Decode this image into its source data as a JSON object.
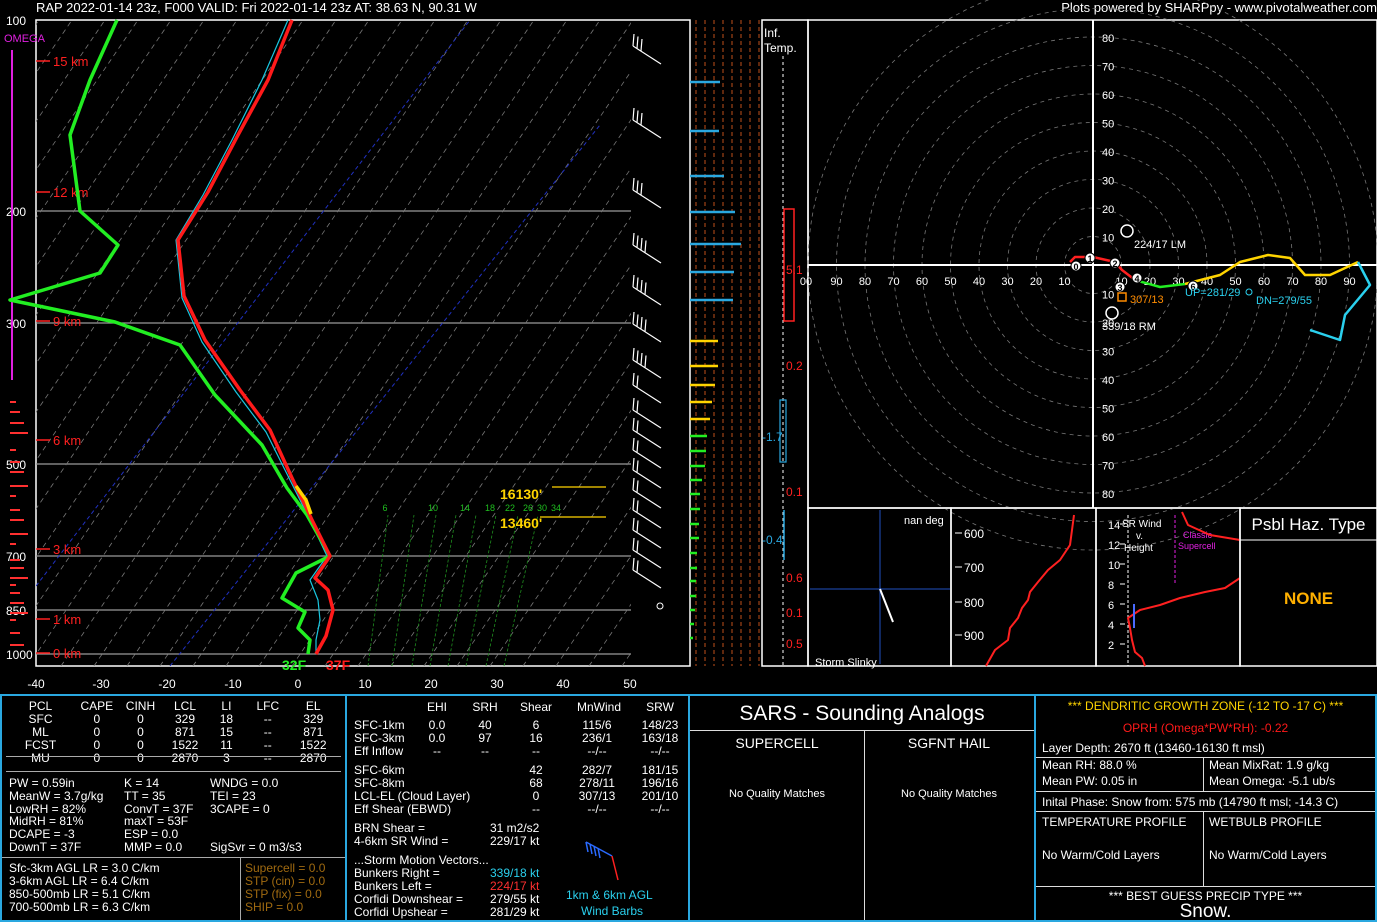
{
  "header": {
    "left": "RAP 2022-01-14 23z, F000  VALID: Fri 2022-01-14 23z  AT: 38.63 N, 90.31 W",
    "right": "Plots powered by SHARPpy - www.pivotalweather.com"
  },
  "colors": {
    "temp": "#ff1a1a",
    "dew": "#22ee22",
    "wetbulb": "#19c7e0",
    "accent": "#2aa8e0",
    "yellow": "#ffd400",
    "magenta": "#e020e0",
    "orange": "#ff8c00"
  },
  "skewt": {
    "omega_label": "OMEGA",
    "pressure_labels": [
      "100",
      "200",
      "300",
      "500",
      "700",
      "850",
      "1000"
    ],
    "height_labels": [
      "15 km",
      "12 km",
      "9 km",
      "6 km",
      "3 km",
      "1 km",
      "0 km"
    ],
    "temp_ticks": [
      "-40",
      "-30",
      "-20",
      "-10",
      "0",
      "10",
      "20",
      "30",
      "40",
      "50"
    ],
    "mixing_ratio_labels": [
      "6",
      "10",
      "14",
      "18",
      "22",
      "26",
      "30",
      "34"
    ],
    "sfc_temp_label": "32F",
    "sfc_dew_label": "37F",
    "dgz_top_label": "16130'",
    "dgz_bottom_label": "13460'"
  },
  "inferred_temp": {
    "title_line1": "Inf.",
    "title_line2": "Temp.",
    "values": [
      "5.1",
      "0.2",
      "-1.7",
      "0.1",
      "-0.4",
      "0.6",
      "0.1",
      "0.5"
    ]
  },
  "hodograph": {
    "speed_rings": [
      "10",
      "20",
      "30",
      "40",
      "50",
      "60",
      "70",
      "80"
    ],
    "x_labels": [
      "00",
      "90",
      "80",
      "70",
      "60",
      "50",
      "40",
      "30",
      "20",
      "10",
      "10",
      "20",
      "30",
      "40",
      "50",
      "60",
      "70",
      "80",
      "90"
    ],
    "lm_label": "224/17 LM",
    "rm_label": "339/18 RM",
    "corfidi_up": "UP=281/29",
    "corfidi_dn": "DN=279/55",
    "mean_wind": "307/13",
    "point_labels": [
      "0",
      "1",
      "2",
      "3",
      "4",
      "6"
    ]
  },
  "storm_slinky": {
    "deg_label": "nan deg",
    "title": "Storm Slinky"
  },
  "theta_e": {
    "labels": [
      "600",
      "700",
      "800",
      "900"
    ]
  },
  "sr_wind": {
    "title_line1": "SR Wind",
    "title_line2": "v.",
    "title_line3": "Height",
    "y_labels": [
      "14",
      "12",
      "10",
      "8",
      "6",
      "4",
      "2"
    ],
    "classic_label": "Classic Supercell"
  },
  "hazard": {
    "title": "Psbl Haz. Type",
    "value": "NONE"
  },
  "parcels": {
    "headers": [
      "PCL",
      "CAPE",
      "CINH",
      "LCL",
      "LI",
      "LFC",
      "EL"
    ],
    "rows": [
      [
        "SFC",
        "0",
        "0",
        "329",
        "18",
        "--",
        "329"
      ],
      [
        "ML",
        "0",
        "0",
        "871",
        "15",
        "--",
        "871"
      ],
      [
        "FCST",
        "0",
        "0",
        "1522",
        "11",
        "--",
        "1522"
      ],
      [
        "MU",
        "0",
        "0",
        "2870",
        "3",
        "--",
        "2870"
      ]
    ]
  },
  "indices": {
    "col1": [
      "PW = 0.59in",
      "MeanW = 3.7g/kg",
      "LowRH = 82%",
      "MidRH = 81%",
      "DCAPE = -3",
      "DownT = 37F"
    ],
    "col2": [
      "K = 14",
      "TT = 35",
      "ConvT = 37F",
      "maxT = 53F",
      "ESP = 0.0",
      "MMP = 0.0"
    ],
    "col3": [
      "WNDG = 0.0",
      "TEI = 23",
      "3CAPE = 0",
      "",
      "",
      "SigSvr = 0 m3/s3"
    ]
  },
  "lapse": {
    "rates": [
      "Sfc-3km AGL LR = 3.0 C/km",
      "3-6km AGL LR = 6.4 C/km",
      "850-500mb LR = 5.1 C/km",
      "700-500mb LR = 6.3 C/km"
    ],
    "params": [
      "Supercell = 0.0",
      "STP (cin) = 0.0",
      "STP (fix) = 0.0",
      "SHIP = 0.0"
    ]
  },
  "kinematics": {
    "headers": [
      "EHI",
      "SRH",
      "Shear",
      "MnWind",
      "SRW"
    ],
    "rows1": [
      [
        "SFC-1km",
        "0.0",
        "40",
        "6",
        "115/6",
        "148/23"
      ],
      [
        "SFC-3km",
        "0.0",
        "97",
        "16",
        "236/1",
        "163/18"
      ],
      [
        "Eff Inflow",
        "--",
        "--",
        "--",
        "--/--",
        "--/--"
      ]
    ],
    "rows2": [
      [
        "SFC-6km",
        "",
        "",
        "42",
        "282/7",
        "181/15"
      ],
      [
        "SFC-8km",
        "",
        "",
        "68",
        "278/11",
        "196/16"
      ],
      [
        "LCL-EL (Cloud Layer)",
        "",
        "",
        "0",
        "307/13",
        "201/10"
      ],
      [
        "Eff Shear (EBWD)",
        "",
        "",
        "--",
        "--/--",
        "--/--"
      ]
    ],
    "brn": [
      "BRN Shear =",
      "31 m2/s2"
    ],
    "sr46": [
      "4-6km SR Wind =",
      "229/17 kt"
    ],
    "storm_title": "...Storm Motion Vectors...",
    "vectors": [
      [
        "Bunkers Right =",
        "339/18 kt"
      ],
      [
        "Bunkers Left =",
        "224/17 kt"
      ],
      [
        "Corfidi Downshear =",
        "279/55 kt"
      ],
      [
        "Corfidi Upshear =",
        "281/29 kt"
      ]
    ],
    "barb_label1": "1km & 6km AGL",
    "barb_label2": "Wind Barbs"
  },
  "sars": {
    "title": "SARS - Sounding Analogs",
    "col1": "SUPERCELL",
    "col2": "SGFNT HAIL",
    "col1_text": "No Quality Matches",
    "col2_text": "No Quality Matches"
  },
  "dgz": {
    "title": "*** DENDRITIC GROWTH ZONE (-12 TO -17 C) ***",
    "oprh": "OPRH (Omega*PW*RH): -0.22",
    "layer": "Layer Depth: 2670 ft (13460-16130 ft msl)",
    "rh": "Mean RH: 88.0 %",
    "mixrat": "Mean MixRat: 1.9 g/kg",
    "pw": "Mean PW: 0.05 in",
    "omega": "Mean Omega: -5.1 ub/s",
    "phase": "Inital Phase: Snow from: 575 mb (14790 ft msl; -14.3 C)",
    "temp_title": "TEMPERATURE PROFILE",
    "wb_title": "WETBULB PROFILE",
    "temp_text": "No Warm/Cold Layers",
    "wb_text": "No Warm/Cold Layers",
    "precip_title": "*** BEST GUESS PRECIP TYPE ***",
    "precip": "Snow."
  }
}
